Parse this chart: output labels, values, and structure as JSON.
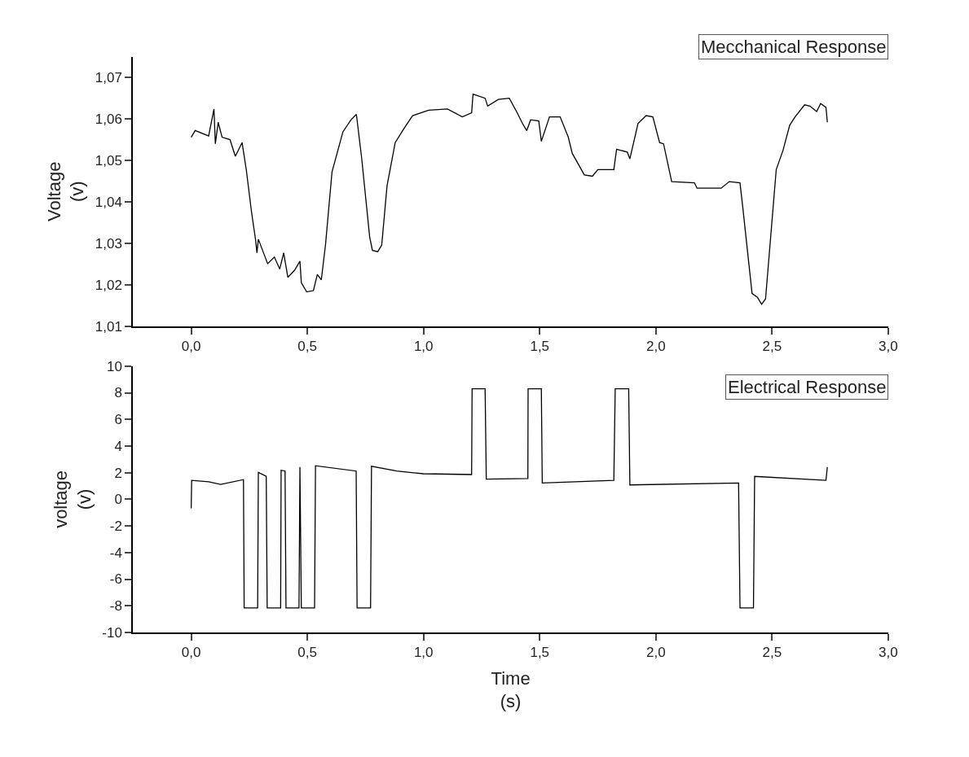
{
  "chart_data": [
    {
      "type": "line",
      "ylabel": "Voltage\n(v)",
      "annotations": [
        "Mecchanical Response"
      ],
      "xlim": [
        -0.25,
        3.0
      ],
      "ylim": [
        1.01,
        1.075
      ],
      "marker": "none",
      "line_style": "solid",
      "xticks": [
        {
          "value": 0,
          "label": "0,0"
        },
        {
          "value": 0.5,
          "label": "0,5"
        },
        {
          "value": 1,
          "label": "1,0"
        },
        {
          "value": 1.5,
          "label": "1,5"
        },
        {
          "value": 2,
          "label": "2,0"
        },
        {
          "value": 2.5,
          "label": "2,5"
        },
        {
          "value": 3,
          "label": "3,0"
        }
      ],
      "yticks": [
        {
          "value": 1.01,
          "label": "1,01"
        },
        {
          "value": 1.02,
          "label": "1,02"
        },
        {
          "value": 1.03,
          "label": "1,03"
        },
        {
          "value": 1.04,
          "label": "1,04"
        },
        {
          "value": 1.05,
          "label": "1,05"
        },
        {
          "value": 1.06,
          "label": "1,06"
        },
        {
          "value": 1.07,
          "label": "1,07"
        }
      ],
      "series": [
        {
          "color": "#000000",
          "x": [
            0,
            0.017,
            0.075,
            0.098,
            0.104,
            0.116,
            0.133,
            0.167,
            0.19,
            0.219,
            0.237,
            0.26,
            0.277,
            0.283,
            0.289,
            0.329,
            0.358,
            0.381,
            0.398,
            0.416,
            0.445,
            0.468,
            0.474,
            0.497,
            0.526,
            0.543,
            0.56,
            0.578,
            0.606,
            0.653,
            0.688,
            0.711,
            0.734,
            0.768,
            0.78,
            0.803,
            0.82,
            0.843,
            0.878,
            0.918,
            0.953,
            1.022,
            1.103,
            1.167,
            1.207,
            1.213,
            1.265,
            1.276,
            1.322,
            1.369,
            1.403,
            1.426,
            1.444,
            1.461,
            1.496,
            1.507,
            1.542,
            1.588,
            1.623,
            1.64,
            1.692,
            1.727,
            1.75,
            1.819,
            1.831,
            1.877,
            1.888,
            1.923,
            1.958,
            1.987,
            2.016,
            2.033,
            2.068,
            2.166,
            2.177,
            2.281,
            2.316,
            2.362,
            2.374,
            2.414,
            2.437,
            2.455,
            2.472,
            2.518,
            2.547,
            2.576,
            2.599,
            2.64,
            2.663,
            2.692,
            2.709,
            2.732,
            2.738
          ],
          "values": [
            1.0556,
            1.0572,
            1.0559,
            1.0624,
            1.054,
            1.0592,
            1.0556,
            1.055,
            1.051,
            1.0543,
            1.0478,
            1.0374,
            1.0309,
            1.0277,
            1.031,
            1.0251,
            1.0267,
            1.0238,
            1.0277,
            1.0218,
            1.0235,
            1.0257,
            1.0205,
            1.0183,
            1.0186,
            1.0225,
            1.0212,
            1.0296,
            1.0472,
            1.0569,
            1.0598,
            1.0611,
            1.0504,
            1.0316,
            1.0283,
            1.028,
            1.0296,
            1.0439,
            1.0543,
            1.0579,
            1.0608,
            1.0621,
            1.0624,
            1.0605,
            1.0615,
            1.066,
            1.065,
            1.0631,
            1.0647,
            1.065,
            1.0615,
            1.0589,
            1.0572,
            1.0598,
            1.0595,
            1.0546,
            1.0605,
            1.0605,
            1.0556,
            1.0517,
            1.0465,
            1.0462,
            1.0478,
            1.0478,
            1.0527,
            1.052,
            1.0504,
            1.0589,
            1.0608,
            1.0605,
            1.0543,
            1.054,
            1.0449,
            1.0446,
            1.0433,
            1.0433,
            1.0449,
            1.0446,
            1.0387,
            1.0179,
            1.017,
            1.0153,
            1.0166,
            1.0478,
            1.0524,
            1.0585,
            1.0605,
            1.0634,
            1.0631,
            1.0618,
            1.0637,
            1.0628,
            1.0592
          ]
        }
      ]
    },
    {
      "type": "line",
      "xlabel": "Time\n(s)",
      "ylabel": "voltage\n(v)",
      "annotations": [
        "Electrical Response"
      ],
      "xlim": [
        -0.25,
        3.0
      ],
      "ylim": [
        -10,
        10
      ],
      "marker": "none",
      "line_style": "solid",
      "xticks": [
        {
          "value": 0,
          "label": "0,0"
        },
        {
          "value": 0.5,
          "label": "0,5"
        },
        {
          "value": 1,
          "label": "1,0"
        },
        {
          "value": 1.5,
          "label": "1,5"
        },
        {
          "value": 2,
          "label": "2,0"
        },
        {
          "value": 2.5,
          "label": "2,5"
        },
        {
          "value": 3,
          "label": "3,0"
        }
      ],
      "yticks": [
        -10,
        -8,
        -6,
        -4,
        -2,
        0,
        2,
        4,
        6,
        8,
        10
      ],
      "series": [
        {
          "color": "#000000",
          "x": [
            0,
            0.002,
            0.075,
            0.127,
            0.225,
            0.228,
            0.286,
            0.289,
            0.323,
            0.327,
            0.385,
            0.387,
            0.404,
            0.408,
            0.464,
            0.468,
            0.474,
            0.531,
            0.535,
            0.71,
            0.714,
            0.772,
            0.776,
            0.884,
            0.999,
            1.207,
            1.209,
            1.265,
            1.27,
            1.449,
            1.45,
            1.507,
            1.511,
            1.819,
            1.825,
            1.883,
            1.888,
            2.356,
            2.362,
            2.42,
            2.425,
            2.732,
            2.738
          ],
          "values": [
            -0.68,
            1.42,
            1.32,
            1.12,
            1.48,
            -8.16,
            -8.16,
            2.02,
            1.72,
            -8.16,
            -8.16,
            2.18,
            2.12,
            -8.16,
            -8.16,
            2.42,
            -8.16,
            -8.16,
            2.52,
            2.12,
            -8.16,
            -8.16,
            2.48,
            2.12,
            1.92,
            1.86,
            8.3,
            8.3,
            1.52,
            1.56,
            8.3,
            8.3,
            1.22,
            1.42,
            8.3,
            8.3,
            1.08,
            1.22,
            -8.16,
            -8.16,
            1.72,
            1.42,
            2.42
          ]
        }
      ]
    }
  ]
}
